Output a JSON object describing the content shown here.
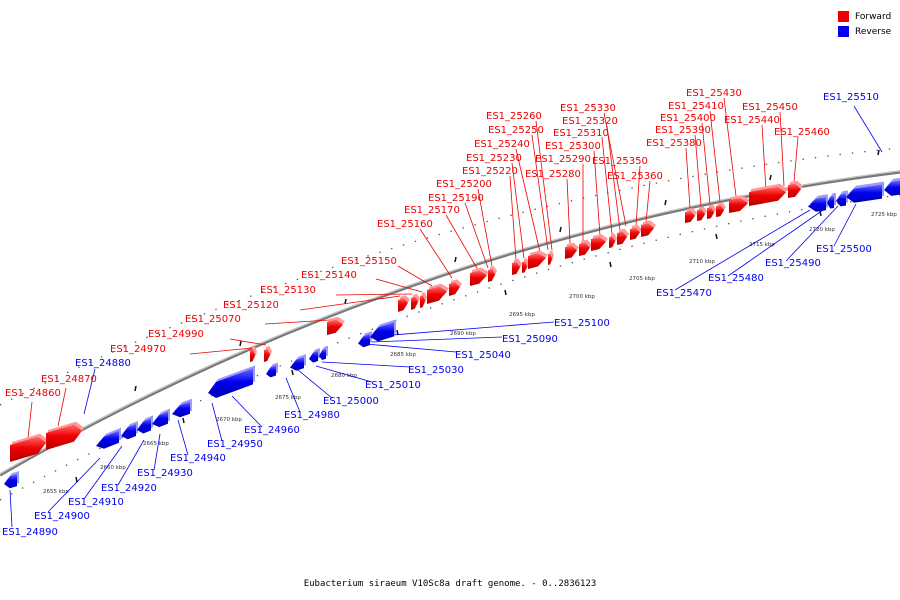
{
  "title": "Eubacterium siraeum V10Sc8a draft genome. - 0..2836123",
  "legend": [
    {
      "label": "Forward",
      "color": "#ee0000"
    },
    {
      "label": "Reverse",
      "color": "#0000ee"
    }
  ],
  "colors": {
    "forward": "#ee0000",
    "reverse": "#0000ee",
    "backbone": "#888888"
  },
  "axis": {
    "unit": "kbp",
    "ticks": [
      2655,
      2660,
      2665,
      2670,
      2675,
      2680,
      2685,
      2690,
      2695,
      2700,
      2705,
      2710,
      2715,
      2720,
      2725
    ]
  },
  "forward_genes": [
    "ES1_24860",
    "ES1_24870",
    "ES1_24970",
    "ES1_24990",
    "ES1_25070",
    "ES1_25120",
    "ES1_25130",
    "ES1_25140",
    "ES1_25150",
    "ES1_25160",
    "ES1_25170",
    "ES1_25190",
    "ES1_25200",
    "ES1_25220",
    "ES1_25230",
    "ES1_25240",
    "ES1_25250",
    "ES1_25260",
    "ES1_25280",
    "ES1_25290",
    "ES1_25300",
    "ES1_25310",
    "ES1_25320",
    "ES1_25330",
    "ES1_25350",
    "ES1_25360",
    "ES1_25380",
    "ES1_25390",
    "ES1_25400",
    "ES1_25410",
    "ES1_25430",
    "ES1_25440",
    "ES1_25450",
    "ES1_25460"
  ],
  "reverse_genes": [
    "ES1_24880",
    "ES1_24890",
    "ES1_24900",
    "ES1_24910",
    "ES1_24920",
    "ES1_24930",
    "ES1_24940",
    "ES1_24950",
    "ES1_24960",
    "ES1_24980",
    "ES1_25000",
    "ES1_25010",
    "ES1_25030",
    "ES1_25040",
    "ES1_25090",
    "ES1_25100",
    "ES1_25470",
    "ES1_25480",
    "ES1_25490",
    "ES1_25500",
    "ES1_25510"
  ]
}
